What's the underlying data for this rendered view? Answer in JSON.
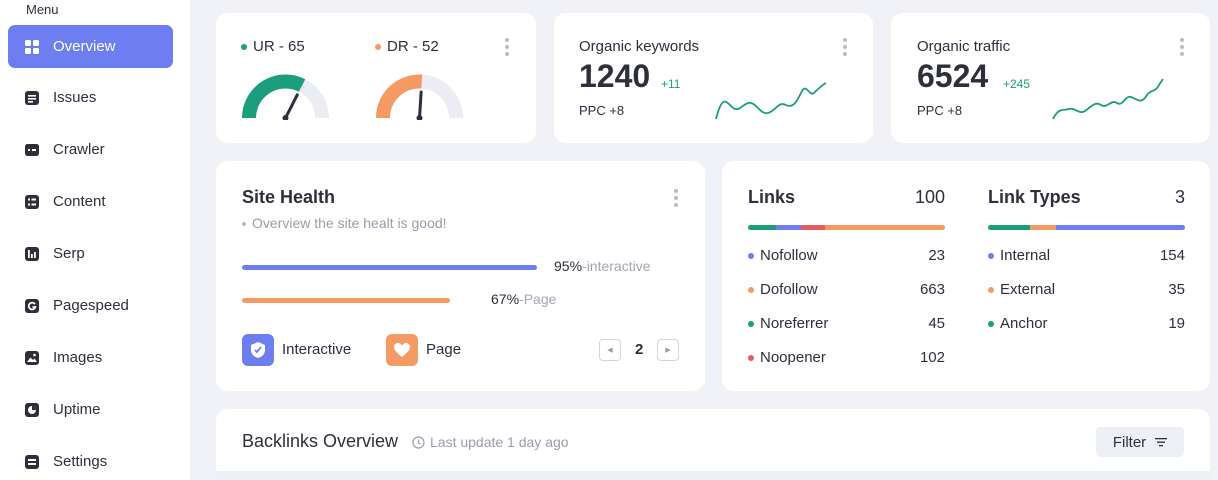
{
  "sidebar": {
    "menu_label": "Menu",
    "items": [
      {
        "label": "Overview",
        "icon": "grid-icon",
        "active": true
      },
      {
        "label": "Issues",
        "icon": "list-icon"
      },
      {
        "label": "Crawler",
        "icon": "terminal-icon"
      },
      {
        "label": "Content",
        "icon": "document-icon"
      },
      {
        "label": "Serp",
        "icon": "chart-icon"
      },
      {
        "label": "Pagespeed",
        "icon": "g-icon"
      },
      {
        "label": "Images",
        "icon": "image-icon"
      },
      {
        "label": "Uptime",
        "icon": "clock-icon"
      },
      {
        "label": "Settings",
        "icon": "settings-icon"
      }
    ]
  },
  "ratings": {
    "ur": {
      "label": "UR - 65",
      "value": 65,
      "color": "#1a9e7e"
    },
    "dr": {
      "label": "DR - 52",
      "value": 52,
      "color": "#f59a62"
    }
  },
  "organic_keywords": {
    "title": "Organic keywords",
    "value": "1240",
    "delta": "+11",
    "ppc": "PPC +8"
  },
  "organic_traffic": {
    "title": "Organic traffic",
    "value": "6524",
    "delta": "+245",
    "ppc": "PPC +8"
  },
  "site_health": {
    "title": "Site Health",
    "subtitle": "Overview the site healt is good!",
    "bars": [
      {
        "percent": "95%",
        "suffix": "-interactive",
        "value": 0.95,
        "color": "#6c7ef0"
      },
      {
        "percent": "67%",
        "suffix": "-Page",
        "value": 0.67,
        "color": "#f59a62"
      }
    ],
    "legend": [
      {
        "label": "Interactive",
        "icon": "shield-icon",
        "color": "#6c7ef0"
      },
      {
        "label": "Page",
        "icon": "heart-icon",
        "color": "#f59a62"
      }
    ],
    "page": "2"
  },
  "links": {
    "title": "Links",
    "total": "100",
    "rows": [
      {
        "label": "Nofollow",
        "value": "23",
        "color": "#6c7ef0"
      },
      {
        "label": "Dofollow",
        "value": "663",
        "color": "#f59a62"
      },
      {
        "label": "Noreferrer",
        "value": "45",
        "color": "#1a9e7e"
      },
      {
        "label": "Noopener",
        "value": "102",
        "color": "#e45c5c"
      }
    ]
  },
  "link_types": {
    "title": "Link Types",
    "total": "3",
    "rows": [
      {
        "label": "Internal",
        "value": "154",
        "color": "#6c7ef0"
      },
      {
        "label": "External",
        "value": "35",
        "color": "#f59a62"
      },
      {
        "label": "Anchor",
        "value": "19",
        "color": "#1a9e7e"
      }
    ]
  },
  "backlinks": {
    "title": "Backlinks Overview",
    "last_update": "Last update 1 day ago",
    "filter_label": "Filter"
  }
}
